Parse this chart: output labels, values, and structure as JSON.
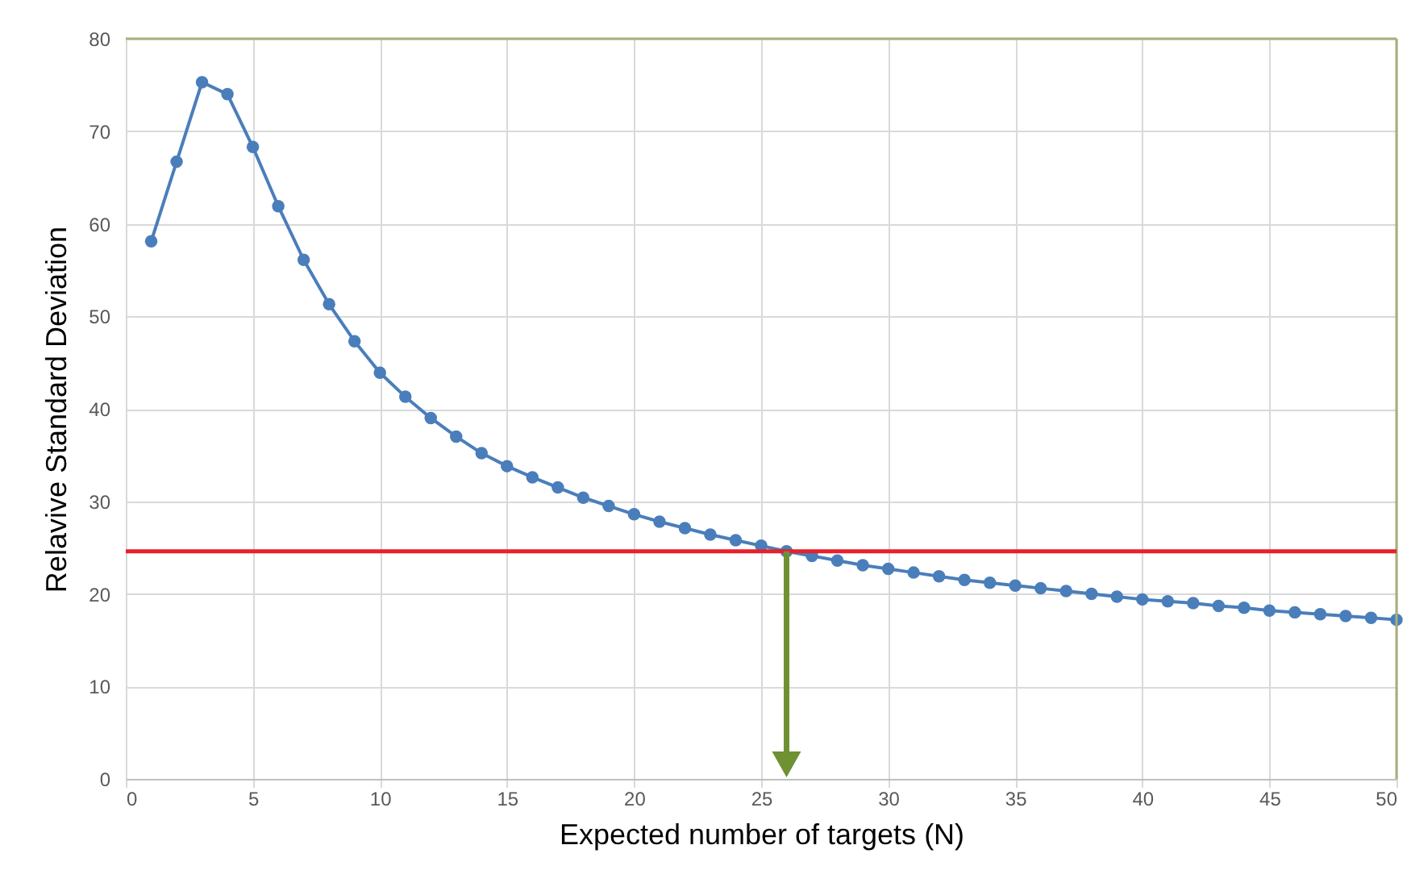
{
  "chart_data": {
    "type": "line",
    "xlabel": "Expected number of targets (N)",
    "ylabel": "Relavive Standard Deviation",
    "x": [
      1,
      2,
      3,
      4,
      5,
      6,
      7,
      8,
      9,
      10,
      11,
      12,
      13,
      14,
      15,
      16,
      17,
      18,
      19,
      20,
      21,
      22,
      23,
      24,
      25,
      26,
      27,
      28,
      29,
      30,
      31,
      32,
      33,
      34,
      35,
      36,
      37,
      38,
      39,
      40,
      41,
      42,
      43,
      44,
      45,
      46,
      47,
      48,
      49,
      50
    ],
    "series": [
      {
        "color": "#4a7ebb",
        "values": [
          58.1,
          66.7,
          75.3,
          74.0,
          68.3,
          61.9,
          56.1,
          51.3,
          47.3,
          43.9,
          41.3,
          39.0,
          37.0,
          35.2,
          33.8,
          32.6,
          31.5,
          30.4,
          29.5,
          28.6,
          27.8,
          27.1,
          26.4,
          25.8,
          25.2,
          24.6,
          24.1,
          23.6,
          23.1,
          22.7,
          22.3,
          21.9,
          21.5,
          21.2,
          20.9,
          20.6,
          20.3,
          20.0,
          19.7,
          19.4,
          19.2,
          19.0,
          18.7,
          18.5,
          18.2,
          18.0,
          17.8,
          17.6,
          17.4,
          17.2
        ]
      }
    ],
    "xlim": [
      0,
      50
    ],
    "xticks": [
      0,
      5,
      10,
      15,
      20,
      25,
      30,
      35,
      40,
      45,
      50
    ],
    "ylim": [
      0,
      80
    ],
    "yticks": [
      0,
      10,
      20,
      30,
      40,
      50,
      60,
      70,
      80
    ],
    "ref_lines": [
      {
        "axis": "y",
        "value": 24.6,
        "color": "#e8202a"
      },
      {
        "axis": "x",
        "value": 26,
        "color": "#6e9132"
      }
    ],
    "grid": true,
    "marker": "circle",
    "line_style": "solid"
  }
}
